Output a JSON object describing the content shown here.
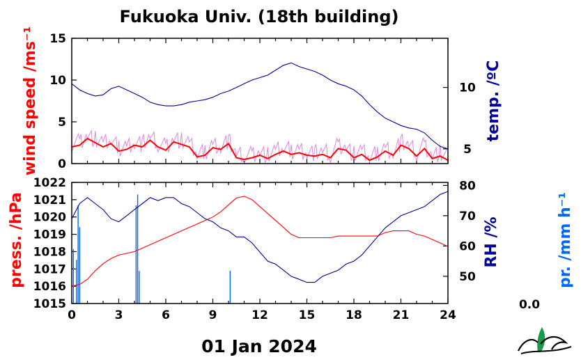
{
  "title": "Fukuoka Univ. (18th building)",
  "date_label": "01 Jan 2024",
  "colors": {
    "wind": "#ff0000",
    "wind_raw": "#dd88dd",
    "temp": "#000099",
    "press": "#ff0000",
    "rh": "#000099",
    "precip": "#0066ff"
  },
  "chart_data": [
    {
      "type": "line",
      "panel": "top",
      "x_ticks": [
        "0",
        "3",
        "6",
        "9",
        "12",
        "15",
        "18",
        "21",
        "24"
      ],
      "xlim": [
        0,
        24
      ],
      "left_axis": {
        "label": "wind speed /ms⁻¹",
        "lim": [
          0,
          15
        ],
        "ticks": [
          "0",
          "5",
          "10",
          "15"
        ]
      },
      "right_axis": {
        "label": "temp. /ºC",
        "lim": [
          3.8,
          14
        ],
        "ticks": [
          "5",
          "10"
        ]
      },
      "series": [
        {
          "axis": "left",
          "x": [
            0,
            0.5,
            1,
            1.5,
            2,
            2.5,
            3,
            3.5,
            4,
            4.5,
            5,
            5.5,
            6,
            6.5,
            7,
            7.5,
            8,
            8.5,
            9,
            9.5,
            10,
            10.5,
            11,
            11.5,
            12,
            12.5,
            13,
            13.5,
            14,
            14.5,
            15,
            15.5,
            16,
            16.5,
            17,
            17.5,
            18,
            18.5,
            19,
            19.5,
            20,
            20.5,
            21,
            21.5,
            22,
            22.5,
            23,
            23.5,
            24
          ],
          "y": [
            2.0,
            2.2,
            3.0,
            2.5,
            2.0,
            2.4,
            1.5,
            1.7,
            2.2,
            2.0,
            2.8,
            2.0,
            1.6,
            2.6,
            2.3,
            2.0,
            0.8,
            1.0,
            1.9,
            1.7,
            2.4,
            0.7,
            0.5,
            0.7,
            1.0,
            0.6,
            1.1,
            1.5,
            1.1,
            1.3,
            1.0,
            0.9,
            1.1,
            0.7,
            1.8,
            1.6,
            0.7,
            1.1,
            0.4,
            0.8,
            1.5,
            1.0,
            2.2,
            1.8,
            0.9,
            1.8,
            0.6,
            0.9,
            0.4
          ]
        },
        {
          "axis": "right",
          "x": [
            0,
            0.5,
            1,
            1.5,
            2,
            2.5,
            3,
            3.5,
            4,
            4.5,
            5,
            5.5,
            6,
            6.5,
            7,
            7.5,
            8,
            8.5,
            9,
            9.5,
            10,
            10.5,
            11,
            11.5,
            12,
            12.5,
            13,
            13.5,
            14,
            14.5,
            15,
            15.5,
            16,
            16.5,
            17,
            17.5,
            18,
            18.5,
            19,
            19.5,
            20,
            20.5,
            21,
            21.5,
            22,
            22.5,
            23,
            23.5,
            24
          ],
          "y": [
            10.3,
            9.8,
            9.5,
            9.3,
            9.4,
            9.9,
            10.1,
            9.8,
            9.5,
            9.2,
            8.8,
            8.6,
            8.5,
            8.5,
            8.6,
            8.8,
            8.9,
            9.0,
            9.2,
            9.5,
            9.7,
            10.0,
            10.3,
            10.6,
            10.8,
            11.0,
            11.4,
            11.8,
            12.0,
            11.7,
            11.5,
            11.3,
            11.0,
            10.6,
            10.3,
            10.1,
            9.8,
            9.3,
            8.6,
            8.0,
            7.5,
            7.2,
            6.9,
            6.7,
            6.6,
            6.3,
            5.7,
            5.2,
            5.0
          ]
        }
      ]
    },
    {
      "type": "line",
      "panel": "bottom",
      "x_ticks": [
        "0",
        "3",
        "6",
        "9",
        "12",
        "15",
        "18",
        "21",
        "24"
      ],
      "xlim": [
        0,
        24
      ],
      "x_label": "01 Jan 2024",
      "left_axis": {
        "label": "press. /hPa",
        "lim": [
          1015,
          1022
        ],
        "ticks": [
          "1015",
          "1016",
          "1017",
          "1018",
          "1019",
          "1020",
          "1021",
          "1022"
        ]
      },
      "right_axis": {
        "label": "RH /%",
        "lim": [
          41,
          81
        ],
        "ticks": [
          "50",
          "60",
          "70",
          "80"
        ]
      },
      "precip_axis": {
        "label": "pr. /mm h⁻¹",
        "value_label": "0.0"
      },
      "series": [
        {
          "axis": "left",
          "x": [
            0,
            0.5,
            1,
            1.5,
            2,
            2.5,
            3,
            3.5,
            4,
            4.5,
            5,
            5.5,
            6,
            6.5,
            7,
            7.5,
            8,
            8.5,
            9,
            9.5,
            10,
            10.5,
            11,
            11.5,
            12,
            12.5,
            13,
            13.5,
            14,
            14.5,
            15,
            15.5,
            16,
            16.5,
            17,
            17.5,
            18,
            18.5,
            19,
            19.5,
            20,
            20.5,
            21,
            21.5,
            22,
            22.5,
            23,
            23.5,
            24
          ],
          "y": [
            1016.0,
            1016.1,
            1016.4,
            1016.9,
            1017.3,
            1017.6,
            1017.8,
            1017.9,
            1018.0,
            1018.2,
            1018.4,
            1018.6,
            1018.8,
            1019.0,
            1019.2,
            1019.4,
            1019.6,
            1019.8,
            1020.0,
            1020.3,
            1020.7,
            1021.1,
            1021.2,
            1021.0,
            1020.6,
            1020.2,
            1019.8,
            1019.4,
            1019.0,
            1018.8,
            1018.8,
            1018.8,
            1018.8,
            1018.8,
            1018.9,
            1018.9,
            1018.9,
            1018.9,
            1018.9,
            1018.9,
            1019.1,
            1019.2,
            1019.2,
            1019.2,
            1019.0,
            1018.9,
            1018.7,
            1018.5,
            1018.3
          ]
        },
        {
          "axis": "right",
          "x": [
            0,
            0.5,
            1,
            1.5,
            2,
            2.5,
            3,
            3.5,
            4,
            4.5,
            5,
            5.5,
            6,
            6.5,
            7,
            7.5,
            8,
            8.5,
            9,
            9.5,
            10,
            10.5,
            11,
            11.5,
            12,
            12.5,
            13,
            13.5,
            14,
            14.5,
            15,
            15.5,
            16,
            16.5,
            17,
            17.5,
            18,
            18.5,
            19,
            19.5,
            20,
            20.5,
            21,
            21.5,
            22,
            22.5,
            23,
            23.5,
            24
          ],
          "y": [
            69,
            74,
            76,
            74,
            72,
            69,
            68,
            70,
            72,
            74,
            76,
            75,
            76,
            76,
            74,
            73,
            71,
            69,
            68,
            66,
            65,
            63,
            63,
            61,
            58,
            55,
            54,
            52,
            50,
            49,
            48,
            48,
            50,
            51,
            52,
            54,
            55,
            57,
            60,
            63,
            66,
            68,
            70,
            71,
            72,
            73,
            75,
            77,
            78
          ]
        },
        {
          "axis": "precip",
          "type": "bar",
          "x": [
            0.1,
            0.3,
            0.4,
            0.5,
            4.1,
            4.2,
            4.3,
            10.1
          ],
          "y": [
            0.5,
            0.4,
            0.9,
            0.7,
            0.9,
            1.0,
            0.3,
            0.3
          ]
        }
      ]
    }
  ]
}
